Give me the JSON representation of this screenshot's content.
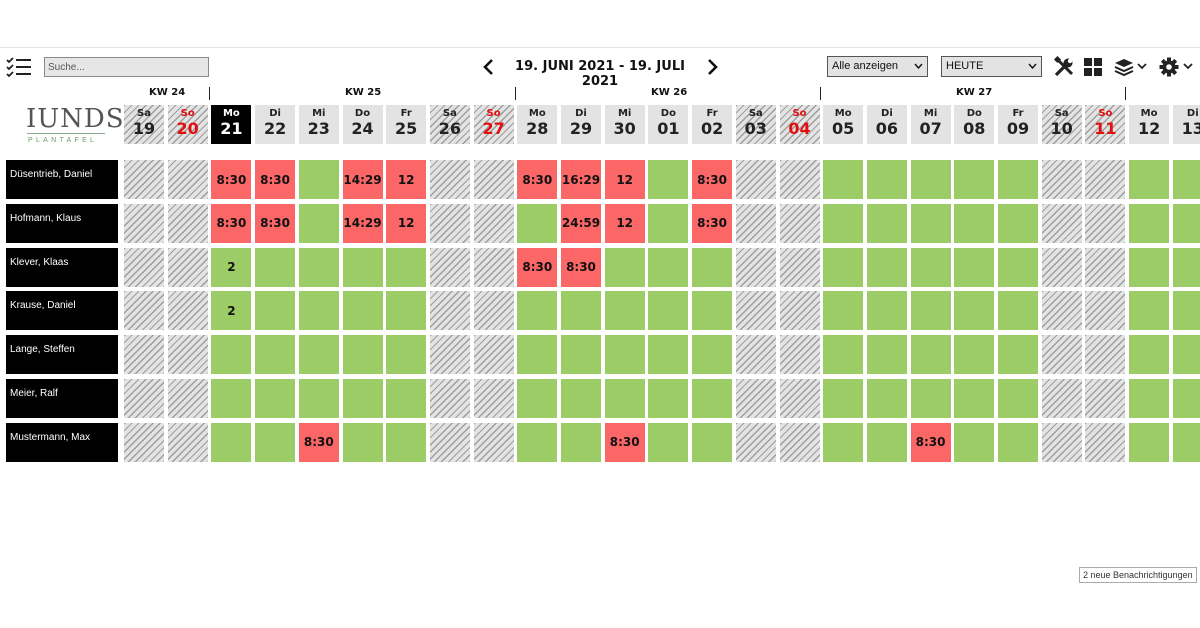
{
  "toolbar": {
    "search_placeholder": "Suche...",
    "date_range": "19. JUNI 2021 - 19. JULI 2021",
    "filter_value": "Alle anzeigen",
    "today_value": "HEUTE"
  },
  "logo": {
    "main": "IUNDS",
    "sub": "PLANTAFEL"
  },
  "weeks": [
    "KW 24",
    "KW 25",
    "KW 26",
    "KW 27"
  ],
  "days": [
    {
      "wd": "Sa",
      "d": "19",
      "type": "weekend"
    },
    {
      "wd": "So",
      "d": "20",
      "type": "sunday"
    },
    {
      "wd": "Mo",
      "d": "21",
      "type": "today"
    },
    {
      "wd": "Di",
      "d": "22",
      "type": "work"
    },
    {
      "wd": "Mi",
      "d": "23",
      "type": "work"
    },
    {
      "wd": "Do",
      "d": "24",
      "type": "work"
    },
    {
      "wd": "Fr",
      "d": "25",
      "type": "work"
    },
    {
      "wd": "Sa",
      "d": "26",
      "type": "weekend"
    },
    {
      "wd": "So",
      "d": "27",
      "type": "sunday"
    },
    {
      "wd": "Mo",
      "d": "28",
      "type": "work"
    },
    {
      "wd": "Di",
      "d": "29",
      "type": "work"
    },
    {
      "wd": "Mi",
      "d": "30",
      "type": "work"
    },
    {
      "wd": "Do",
      "d": "01",
      "type": "work"
    },
    {
      "wd": "Fr",
      "d": "02",
      "type": "work"
    },
    {
      "wd": "Sa",
      "d": "03",
      "type": "weekend"
    },
    {
      "wd": "So",
      "d": "04",
      "type": "sunday"
    },
    {
      "wd": "Mo",
      "d": "05",
      "type": "work"
    },
    {
      "wd": "Di",
      "d": "06",
      "type": "work"
    },
    {
      "wd": "Mi",
      "d": "07",
      "type": "work"
    },
    {
      "wd": "Do",
      "d": "08",
      "type": "work"
    },
    {
      "wd": "Fr",
      "d": "09",
      "type": "work"
    },
    {
      "wd": "Sa",
      "d": "10",
      "type": "weekend"
    },
    {
      "wd": "So",
      "d": "11",
      "type": "sunday"
    },
    {
      "wd": "Mo",
      "d": "12",
      "type": "work"
    },
    {
      "wd": "Di",
      "d": "13",
      "type": "work"
    }
  ],
  "employees": [
    {
      "name": "Düsentrieb, Daniel",
      "cells": [
        {
          "s": "h",
          "t": ""
        },
        {
          "s": "h",
          "t": ""
        },
        {
          "s": "r",
          "t": "8:30"
        },
        {
          "s": "r",
          "t": "8:30"
        },
        {
          "s": "g",
          "t": ""
        },
        {
          "s": "r",
          "t": "14:29"
        },
        {
          "s": "r",
          "t": "12"
        },
        {
          "s": "h",
          "t": ""
        },
        {
          "s": "h",
          "t": ""
        },
        {
          "s": "r",
          "t": "8:30"
        },
        {
          "s": "r",
          "t": "16:29"
        },
        {
          "s": "r",
          "t": "12"
        },
        {
          "s": "g",
          "t": ""
        },
        {
          "s": "r",
          "t": "8:30"
        },
        {
          "s": "h",
          "t": ""
        },
        {
          "s": "h",
          "t": ""
        },
        {
          "s": "g",
          "t": ""
        },
        {
          "s": "g",
          "t": ""
        },
        {
          "s": "g",
          "t": ""
        },
        {
          "s": "g",
          "t": ""
        },
        {
          "s": "g",
          "t": ""
        },
        {
          "s": "h",
          "t": ""
        },
        {
          "s": "h",
          "t": ""
        },
        {
          "s": "g",
          "t": ""
        },
        {
          "s": "g",
          "t": ""
        }
      ]
    },
    {
      "name": "Hofmann, Klaus",
      "cells": [
        {
          "s": "h",
          "t": ""
        },
        {
          "s": "h",
          "t": ""
        },
        {
          "s": "r",
          "t": "8:30"
        },
        {
          "s": "r",
          "t": "8:30"
        },
        {
          "s": "g",
          "t": ""
        },
        {
          "s": "r",
          "t": "14:29"
        },
        {
          "s": "r",
          "t": "12"
        },
        {
          "s": "h",
          "t": ""
        },
        {
          "s": "h",
          "t": ""
        },
        {
          "s": "g",
          "t": ""
        },
        {
          "s": "r",
          "t": "24:59"
        },
        {
          "s": "r",
          "t": "12"
        },
        {
          "s": "g",
          "t": ""
        },
        {
          "s": "r",
          "t": "8:30"
        },
        {
          "s": "h",
          "t": ""
        },
        {
          "s": "h",
          "t": ""
        },
        {
          "s": "g",
          "t": ""
        },
        {
          "s": "g",
          "t": ""
        },
        {
          "s": "g",
          "t": ""
        },
        {
          "s": "g",
          "t": ""
        },
        {
          "s": "g",
          "t": ""
        },
        {
          "s": "h",
          "t": ""
        },
        {
          "s": "h",
          "t": ""
        },
        {
          "s": "g",
          "t": ""
        },
        {
          "s": "g",
          "t": ""
        }
      ]
    },
    {
      "name": "Klever, Klaas",
      "cells": [
        {
          "s": "h",
          "t": ""
        },
        {
          "s": "h",
          "t": ""
        },
        {
          "s": "g",
          "t": "2"
        },
        {
          "s": "g",
          "t": ""
        },
        {
          "s": "g",
          "t": ""
        },
        {
          "s": "g",
          "t": ""
        },
        {
          "s": "g",
          "t": ""
        },
        {
          "s": "h",
          "t": ""
        },
        {
          "s": "h",
          "t": ""
        },
        {
          "s": "r",
          "t": "8:30"
        },
        {
          "s": "r",
          "t": "8:30"
        },
        {
          "s": "g",
          "t": ""
        },
        {
          "s": "g",
          "t": ""
        },
        {
          "s": "g",
          "t": ""
        },
        {
          "s": "h",
          "t": ""
        },
        {
          "s": "h",
          "t": ""
        },
        {
          "s": "g",
          "t": ""
        },
        {
          "s": "g",
          "t": ""
        },
        {
          "s": "g",
          "t": ""
        },
        {
          "s": "g",
          "t": ""
        },
        {
          "s": "g",
          "t": ""
        },
        {
          "s": "h",
          "t": ""
        },
        {
          "s": "h",
          "t": ""
        },
        {
          "s": "g",
          "t": ""
        },
        {
          "s": "g",
          "t": ""
        }
      ]
    },
    {
      "name": "Krause, Daniel",
      "cells": [
        {
          "s": "h",
          "t": ""
        },
        {
          "s": "h",
          "t": ""
        },
        {
          "s": "g",
          "t": "2"
        },
        {
          "s": "g",
          "t": ""
        },
        {
          "s": "g",
          "t": ""
        },
        {
          "s": "g",
          "t": ""
        },
        {
          "s": "g",
          "t": ""
        },
        {
          "s": "h",
          "t": ""
        },
        {
          "s": "h",
          "t": ""
        },
        {
          "s": "g",
          "t": ""
        },
        {
          "s": "g",
          "t": ""
        },
        {
          "s": "g",
          "t": ""
        },
        {
          "s": "g",
          "t": ""
        },
        {
          "s": "g",
          "t": ""
        },
        {
          "s": "h",
          "t": ""
        },
        {
          "s": "h",
          "t": ""
        },
        {
          "s": "g",
          "t": ""
        },
        {
          "s": "g",
          "t": ""
        },
        {
          "s": "g",
          "t": ""
        },
        {
          "s": "g",
          "t": ""
        },
        {
          "s": "g",
          "t": ""
        },
        {
          "s": "h",
          "t": ""
        },
        {
          "s": "h",
          "t": ""
        },
        {
          "s": "g",
          "t": ""
        },
        {
          "s": "g",
          "t": ""
        }
      ]
    },
    {
      "name": "Lange, Steffen",
      "cells": [
        {
          "s": "h",
          "t": ""
        },
        {
          "s": "h",
          "t": ""
        },
        {
          "s": "g",
          "t": ""
        },
        {
          "s": "g",
          "t": ""
        },
        {
          "s": "g",
          "t": ""
        },
        {
          "s": "g",
          "t": ""
        },
        {
          "s": "g",
          "t": ""
        },
        {
          "s": "h",
          "t": ""
        },
        {
          "s": "h",
          "t": ""
        },
        {
          "s": "g",
          "t": ""
        },
        {
          "s": "g",
          "t": ""
        },
        {
          "s": "g",
          "t": ""
        },
        {
          "s": "g",
          "t": ""
        },
        {
          "s": "g",
          "t": ""
        },
        {
          "s": "h",
          "t": ""
        },
        {
          "s": "h",
          "t": ""
        },
        {
          "s": "g",
          "t": ""
        },
        {
          "s": "g",
          "t": ""
        },
        {
          "s": "g",
          "t": ""
        },
        {
          "s": "g",
          "t": ""
        },
        {
          "s": "g",
          "t": ""
        },
        {
          "s": "h",
          "t": ""
        },
        {
          "s": "h",
          "t": ""
        },
        {
          "s": "g",
          "t": ""
        },
        {
          "s": "g",
          "t": ""
        }
      ]
    },
    {
      "name": "Meier, Ralf",
      "cells": [
        {
          "s": "h",
          "t": ""
        },
        {
          "s": "h",
          "t": ""
        },
        {
          "s": "g",
          "t": ""
        },
        {
          "s": "g",
          "t": ""
        },
        {
          "s": "g",
          "t": ""
        },
        {
          "s": "g",
          "t": ""
        },
        {
          "s": "g",
          "t": ""
        },
        {
          "s": "h",
          "t": ""
        },
        {
          "s": "h",
          "t": ""
        },
        {
          "s": "g",
          "t": ""
        },
        {
          "s": "g",
          "t": ""
        },
        {
          "s": "g",
          "t": ""
        },
        {
          "s": "g",
          "t": ""
        },
        {
          "s": "g",
          "t": ""
        },
        {
          "s": "h",
          "t": ""
        },
        {
          "s": "h",
          "t": ""
        },
        {
          "s": "g",
          "t": ""
        },
        {
          "s": "g",
          "t": ""
        },
        {
          "s": "g",
          "t": ""
        },
        {
          "s": "g",
          "t": ""
        },
        {
          "s": "g",
          "t": ""
        },
        {
          "s": "h",
          "t": ""
        },
        {
          "s": "h",
          "t": ""
        },
        {
          "s": "g",
          "t": ""
        },
        {
          "s": "g",
          "t": ""
        }
      ]
    },
    {
      "name": "Mustermann, Max",
      "cells": [
        {
          "s": "h",
          "t": ""
        },
        {
          "s": "h",
          "t": ""
        },
        {
          "s": "g",
          "t": ""
        },
        {
          "s": "g",
          "t": ""
        },
        {
          "s": "r",
          "t": "8:30"
        },
        {
          "s": "g",
          "t": ""
        },
        {
          "s": "g",
          "t": ""
        },
        {
          "s": "h",
          "t": ""
        },
        {
          "s": "h",
          "t": ""
        },
        {
          "s": "g",
          "t": ""
        },
        {
          "s": "g",
          "t": ""
        },
        {
          "s": "r",
          "t": "8:30"
        },
        {
          "s": "g",
          "t": ""
        },
        {
          "s": "g",
          "t": ""
        },
        {
          "s": "h",
          "t": ""
        },
        {
          "s": "h",
          "t": ""
        },
        {
          "s": "g",
          "t": ""
        },
        {
          "s": "g",
          "t": ""
        },
        {
          "s": "r",
          "t": "8:30"
        },
        {
          "s": "g",
          "t": ""
        },
        {
          "s": "g",
          "t": ""
        },
        {
          "s": "h",
          "t": ""
        },
        {
          "s": "h",
          "t": ""
        },
        {
          "s": "g",
          "t": ""
        },
        {
          "s": "g",
          "t": ""
        }
      ]
    }
  ],
  "colors": {
    "available": "#9ccc65",
    "booked": "#fb6767",
    "weekend": "#e3e3e3",
    "sunday": "#e01010"
  },
  "icons": [
    "checklist-icon",
    "chevron-left-icon",
    "chevron-right-icon",
    "tools-icon",
    "grid-icon",
    "layers-icon",
    "gear-icon"
  ],
  "notifications": "2 neue Benachrichtigungen"
}
